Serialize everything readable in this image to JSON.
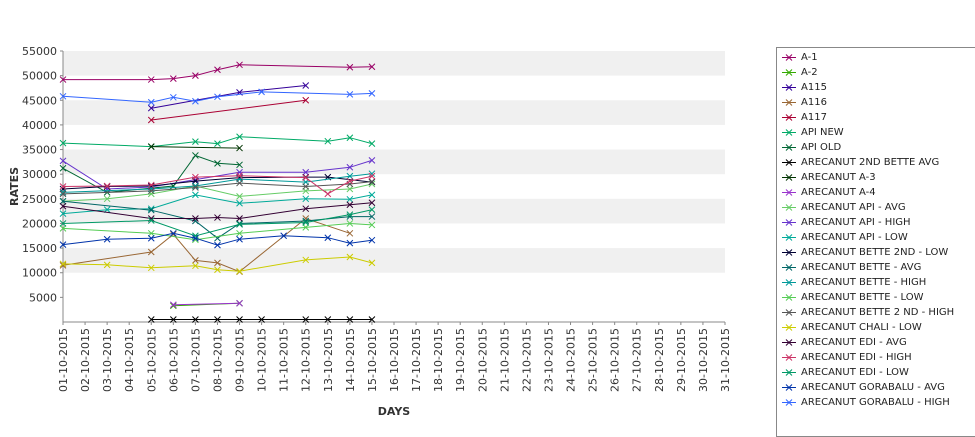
{
  "chart_data": {
    "type": "line",
    "xlabel": "DAYS",
    "ylabel": "RATES",
    "ylim": [
      0,
      55000
    ],
    "y_ticks": [
      5000,
      10000,
      15000,
      20000,
      25000,
      30000,
      35000,
      40000,
      45000,
      50000,
      55000
    ],
    "grid": "alternating horizontal bands",
    "legend_position": "right",
    "categories": [
      "01-10-2015",
      "02-10-2015",
      "03-10-2015",
      "04-10-2015",
      "05-10-2015",
      "06-10-2015",
      "07-10-2015",
      "08-10-2015",
      "09-10-2015",
      "10-10-2015",
      "11-10-2015",
      "12-10-2015",
      "13-10-2015",
      "14-10-2015",
      "15-10-2015",
      "16-10-2015",
      "17-10-2015",
      "18-10-2015",
      "19-10-2015",
      "20-10-2015",
      "21-10-2015",
      "22-10-2015",
      "23-10-2015",
      "24-10-2015",
      "25-10-2015",
      "26-10-2015",
      "27-10-2015",
      "28-10-2015",
      "29-10-2015",
      "30-10-2015",
      "31-10-2015"
    ],
    "series": [
      {
        "name": "A-1",
        "color": "#990066",
        "points": [
          [
            0,
            49200
          ],
          [
            4,
            49200
          ],
          [
            5,
            49400
          ],
          [
            6,
            50000
          ],
          [
            7,
            51200
          ],
          [
            8,
            52200
          ],
          [
            13,
            51700
          ],
          [
            14,
            51800
          ]
        ]
      },
      {
        "name": "A-2",
        "color": "#33aa00",
        "points": [
          [
            5,
            3300
          ],
          [
            8,
            3800
          ]
        ]
      },
      {
        "name": "A115",
        "color": "#330099",
        "points": [
          [
            4,
            43400
          ],
          [
            8,
            46600
          ],
          [
            11,
            48000
          ]
        ]
      },
      {
        "name": "A116",
        "color": "#996633",
        "points": [
          [
            0,
            11500
          ],
          [
            4,
            14200
          ],
          [
            5,
            17800
          ],
          [
            6,
            12500
          ],
          [
            7,
            12000
          ],
          [
            8,
            10200
          ],
          [
            11,
            21000
          ],
          [
            13,
            18000
          ]
        ]
      },
      {
        "name": "A117",
        "color": "#aa0033",
        "points": [
          [
            4,
            41000
          ],
          [
            11,
            45000
          ]
        ]
      },
      {
        "name": "API NEW",
        "color": "#00aa66",
        "points": [
          [
            0,
            36300
          ],
          [
            4,
            35600
          ],
          [
            6,
            36600
          ],
          [
            7,
            36200
          ],
          [
            8,
            37600
          ],
          [
            12,
            36700
          ],
          [
            13,
            37400
          ],
          [
            14,
            36200
          ]
        ]
      },
      {
        "name": "API OLD",
        "color": "#006633",
        "points": [
          [
            0,
            31200
          ],
          [
            2,
            26300
          ],
          [
            5,
            27600
          ],
          [
            6,
            33800
          ],
          [
            7,
            32200
          ],
          [
            8,
            31900
          ]
        ]
      },
      {
        "name": "ARECANUT 2ND BETTE AVG",
        "color": "#000000",
        "points": [
          [
            4,
            500
          ],
          [
            5,
            500
          ],
          [
            6,
            500
          ],
          [
            7,
            500
          ],
          [
            8,
            500
          ],
          [
            9,
            500
          ],
          [
            11,
            500
          ],
          [
            12,
            500
          ],
          [
            13,
            500
          ],
          [
            14,
            500
          ]
        ]
      },
      {
        "name": "ARECANUT A-3",
        "color": "#003300",
        "points": [
          [
            4,
            35600
          ],
          [
            8,
            35300
          ]
        ]
      },
      {
        "name": "ARECANUT A-4",
        "color": "#9933cc",
        "points": [
          [
            5,
            3500
          ],
          [
            8,
            3800
          ]
        ]
      },
      {
        "name": "ARECANUT API - AVG",
        "color": "#66cc66",
        "points": [
          [
            0,
            24500
          ],
          [
            2,
            25000
          ],
          [
            4,
            26000
          ],
          [
            6,
            27600
          ],
          [
            8,
            25500
          ],
          [
            11,
            26600
          ],
          [
            13,
            27000
          ],
          [
            14,
            28000
          ]
        ]
      },
      {
        "name": "ARECANUT API - HIGH",
        "color": "#6633cc",
        "points": [
          [
            0,
            32700
          ],
          [
            2,
            27000
          ],
          [
            4,
            27400
          ],
          [
            6,
            28900
          ],
          [
            8,
            30400
          ],
          [
            11,
            30400
          ],
          [
            13,
            31400
          ],
          [
            14,
            32800
          ]
        ]
      },
      {
        "name": "ARECANUT API - LOW",
        "color": "#00aa99",
        "points": [
          [
            0,
            22000
          ],
          [
            2,
            22800
          ],
          [
            4,
            23000
          ],
          [
            6,
            25800
          ],
          [
            8,
            24100
          ],
          [
            11,
            25000
          ],
          [
            13,
            24900
          ],
          [
            14,
            25800
          ]
        ]
      },
      {
        "name": "ARECANUT BETTE  2ND  - LOW",
        "color": "#000033",
        "points": [
          [
            0,
            27000
          ],
          [
            2,
            27500
          ],
          [
            4,
            27600
          ],
          [
            6,
            28600
          ],
          [
            8,
            29300
          ],
          [
            11,
            29400
          ],
          [
            12,
            29400
          ],
          [
            14,
            28400
          ]
        ]
      },
      {
        "name": "ARECANUT BETTE - AVG",
        "color": "#006666",
        "points": [
          [
            0,
            24500
          ],
          [
            4,
            22700
          ],
          [
            6,
            20500
          ],
          [
            7,
            17000
          ],
          [
            8,
            20000
          ],
          [
            11,
            20500
          ],
          [
            13,
            21400
          ],
          [
            14,
            21400
          ]
        ]
      },
      {
        "name": "ARECANUT BETTE - HIGH",
        "color": "#009999",
        "points": [
          [
            0,
            26300
          ],
          [
            4,
            27000
          ],
          [
            6,
            27600
          ],
          [
            8,
            29000
          ],
          [
            11,
            28400
          ],
          [
            13,
            29600
          ],
          [
            14,
            30100
          ]
        ]
      },
      {
        "name": "ARECANUT BETTE - LOW",
        "color": "#55cc55",
        "points": [
          [
            0,
            19000
          ],
          [
            4,
            18000
          ],
          [
            6,
            16700
          ],
          [
            8,
            18000
          ],
          [
            11,
            19200
          ],
          [
            13,
            20000
          ],
          [
            14,
            19700
          ]
        ]
      },
      {
        "name": "ARECANUT BETTE 2 ND  - HIGH",
        "color": "#555555",
        "points": [
          [
            0,
            26000
          ],
          [
            4,
            26600
          ],
          [
            6,
            27300
          ],
          [
            8,
            28200
          ],
          [
            11,
            27500
          ],
          [
            13,
            28000
          ],
          [
            14,
            28500
          ]
        ]
      },
      {
        "name": "ARECANUT CHALI - LOW",
        "color": "#cccc00",
        "points": [
          [
            0,
            11800
          ],
          [
            2,
            11600
          ],
          [
            4,
            11000
          ],
          [
            6,
            11400
          ],
          [
            7,
            10600
          ],
          [
            8,
            10300
          ],
          [
            11,
            12600
          ],
          [
            13,
            13200
          ],
          [
            14,
            12000
          ]
        ]
      },
      {
        "name": "ARECANUT EDI - AVG",
        "color": "#330033",
        "points": [
          [
            0,
            23500
          ],
          [
            4,
            21000
          ],
          [
            6,
            21000
          ],
          [
            7,
            21200
          ],
          [
            8,
            21000
          ],
          [
            11,
            23000
          ],
          [
            13,
            23800
          ],
          [
            14,
            24200
          ]
        ]
      },
      {
        "name": "ARECANUT EDI - HIGH",
        "color": "#cc3366",
        "points": [
          [
            0,
            27500
          ],
          [
            2,
            27600
          ],
          [
            4,
            27800
          ],
          [
            6,
            29400
          ],
          [
            8,
            29700
          ],
          [
            11,
            29300
          ],
          [
            12,
            26000
          ],
          [
            13,
            28600
          ],
          [
            14,
            29600
          ]
        ]
      },
      {
        "name": "ARECANUT EDI - LOW",
        "color": "#009966",
        "points": [
          [
            0,
            20000
          ],
          [
            4,
            20600
          ],
          [
            6,
            17500
          ],
          [
            8,
            19800
          ],
          [
            11,
            20200
          ],
          [
            13,
            21800
          ],
          [
            14,
            22800
          ]
        ]
      },
      {
        "name": "ARECANUT GORABALU - AVG",
        "color": "#0033aa",
        "points": [
          [
            0,
            15700
          ],
          [
            2,
            16800
          ],
          [
            4,
            17000
          ],
          [
            5,
            18000
          ],
          [
            6,
            17000
          ],
          [
            7,
            15600
          ],
          [
            8,
            16800
          ],
          [
            10,
            17500
          ],
          [
            12,
            17100
          ],
          [
            13,
            16000
          ],
          [
            14,
            16600
          ]
        ]
      },
      {
        "name": "ARECANUT GORABALU - HIGH",
        "color": "#3366ff",
        "points": [
          [
            0,
            45800
          ],
          [
            4,
            44600
          ],
          [
            5,
            45600
          ],
          [
            6,
            44800
          ],
          [
            7,
            45700
          ],
          [
            9,
            46700
          ],
          [
            13,
            46200
          ],
          [
            14,
            46400
          ]
        ]
      }
    ]
  }
}
